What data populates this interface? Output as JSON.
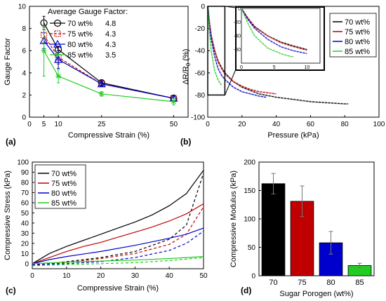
{
  "colors": {
    "70": "#000000",
    "75": "#c00000",
    "80": "#0000cc",
    "85": "#22cc22"
  },
  "chart_data": [
    {
      "panel_label": "(a)",
      "type": "line",
      "xlabel": "Compressive Strain (%)",
      "ylabel": "Gauge Factor",
      "xlim": [
        0,
        55
      ],
      "ylim": [
        0,
        10
      ],
      "xticks": [
        "0",
        "5",
        "10",
        "25",
        "50"
      ],
      "yticks": [
        "0",
        "2",
        "4",
        "6",
        "8",
        "10"
      ],
      "x": [
        5,
        10,
        25,
        50
      ],
      "legend_title": "Average Gauge Factor:",
      "series": [
        {
          "name": "70 wt%",
          "avg": "4.8",
          "marker": "circle",
          "values": [
            8.5,
            6.1,
            3.1,
            1.7
          ],
          "err": [
            0.6,
            0.3,
            0.2,
            0.2
          ]
        },
        {
          "name": "75 wt%",
          "avg": "4.3",
          "marker": "square",
          "values": [
            7.4,
            5.4,
            3.0,
            1.7
          ],
          "err": [
            0.7,
            0.6,
            0.2,
            0.2
          ]
        },
        {
          "name": "80 wt%",
          "avg": "4.3",
          "marker": "triangle",
          "values": [
            6.9,
            5.2,
            3.0,
            1.7
          ],
          "err": [
            0.7,
            0.8,
            0.2,
            0.2
          ]
        },
        {
          "name": "85 wt%",
          "avg": "3.5",
          "marker": "star",
          "values": [
            6.0,
            3.7,
            2.1,
            1.4
          ],
          "err": [
            2.3,
            0.6,
            0.2,
            0.3
          ]
        }
      ]
    },
    {
      "panel_label": "(b)",
      "type": "line",
      "xlabel": "Pressure (kPa)",
      "ylabel": "ΔR/R",
      "ylabel_sub": "0",
      "ylabel_unit": " (%)",
      "xlim": [
        0,
        100
      ],
      "ylim": [
        -100,
        0
      ],
      "xticks": [
        "0",
        "20",
        "40",
        "60",
        "80",
        "100"
      ],
      "yticks": [
        "0",
        "-20",
        "-40",
        "-60",
        "-80",
        "-100"
      ],
      "series": [
        {
          "name": "70 wt%",
          "x": [
            0,
            1,
            2,
            4,
            6,
            8,
            10,
            15,
            20,
            25,
            30,
            40,
            50,
            60,
            70,
            80,
            82
          ],
          "values": [
            0,
            -16,
            -27,
            -40,
            -49,
            -55,
            -60,
            -68,
            -73,
            -76,
            -79,
            -82,
            -84,
            -86,
            -87,
            -88,
            -88
          ]
        },
        {
          "name": "75 wt%",
          "x": [
            0,
            1,
            2,
            4,
            6,
            8,
            10,
            15,
            20,
            25,
            30,
            35,
            40
          ],
          "values": [
            0,
            -14,
            -26,
            -40,
            -50,
            -56,
            -61,
            -68,
            -72,
            -75,
            -77,
            -78,
            -79
          ]
        },
        {
          "name": "80 wt%",
          "x": [
            0,
            1,
            2,
            4,
            6,
            8,
            10,
            15,
            20,
            25,
            30,
            34
          ],
          "values": [
            0,
            -16,
            -29,
            -45,
            -56,
            -62,
            -66,
            -73,
            -77,
            -79,
            -81,
            -82
          ]
        },
        {
          "name": "85 wt%",
          "x": [
            0,
            1,
            2,
            4,
            6,
            7,
            8
          ],
          "values": [
            0,
            -22,
            -40,
            -58,
            -66,
            -69,
            -71
          ]
        }
      ],
      "inset": {
        "xlim": [
          0,
          12
        ],
        "ylim": [
          -80,
          0
        ],
        "xticks": [
          "0",
          "5",
          "10"
        ],
        "yticks": [
          "0",
          "-20",
          "-40",
          "-60"
        ],
        "zoom_box": {
          "x": [
            0,
            10
          ],
          "y": [
            -80,
            0
          ]
        }
      }
    },
    {
      "panel_label": "(c)",
      "type": "line",
      "xlabel": "Compressive Strain (%)",
      "ylabel": "Compressive Stress (kPa)",
      "xlim": [
        0,
        50
      ],
      "ylim": [
        -5,
        100
      ],
      "xticks": [
        "0",
        "10",
        "20",
        "30",
        "40",
        "50"
      ],
      "yticks": [
        "0",
        "10",
        "20",
        "30",
        "40",
        "50",
        "60",
        "70",
        "80",
        "90",
        "100"
      ],
      "series": [
        {
          "name": "70 wt%",
          "loading": [
            [
              0,
              0
            ],
            [
              5,
              10
            ],
            [
              10,
              17
            ],
            [
              15,
              23
            ],
            [
              20,
              29
            ],
            [
              25,
              35
            ],
            [
              30,
              41
            ],
            [
              35,
              48
            ],
            [
              40,
              57
            ],
            [
              45,
              69
            ],
            [
              50,
              92
            ]
          ],
          "unloading": [
            [
              0,
              -2
            ],
            [
              10,
              2
            ],
            [
              20,
              6
            ],
            [
              30,
              12
            ],
            [
              40,
              24
            ],
            [
              45,
              38
            ],
            [
              50,
              89
            ]
          ]
        },
        {
          "name": "75 wt%",
          "loading": [
            [
              0,
              0
            ],
            [
              5,
              6
            ],
            [
              10,
              12
            ],
            [
              15,
              17
            ],
            [
              20,
              21
            ],
            [
              25,
              26
            ],
            [
              30,
              31
            ],
            [
              35,
              36
            ],
            [
              40,
              42
            ],
            [
              45,
              49
            ],
            [
              50,
              59
            ]
          ],
          "unloading": [
            [
              0,
              -1
            ],
            [
              10,
              1
            ],
            [
              20,
              5
            ],
            [
              30,
              10
            ],
            [
              40,
              19
            ],
            [
              45,
              29
            ],
            [
              50,
              56
            ]
          ]
        },
        {
          "name": "80 wt%",
          "loading": [
            [
              0,
              0
            ],
            [
              5,
              4
            ],
            [
              10,
              7
            ],
            [
              20,
              12
            ],
            [
              30,
              18
            ],
            [
              40,
              25
            ],
            [
              45,
              29
            ],
            [
              50,
              35
            ]
          ],
          "unloading": [
            [
              0,
              -1
            ],
            [
              10,
              0
            ],
            [
              20,
              2
            ],
            [
              30,
              6
            ],
            [
              40,
              13
            ],
            [
              45,
              20
            ],
            [
              50,
              32
            ]
          ]
        },
        {
          "name": "85 wt%",
          "loading": [
            [
              0,
              0
            ],
            [
              10,
              1.5
            ],
            [
              20,
              2.5
            ],
            [
              30,
              3.5
            ],
            [
              40,
              5
            ],
            [
              50,
              7
            ]
          ],
          "unloading": [
            [
              0,
              -2
            ],
            [
              10,
              -1
            ],
            [
              20,
              0
            ],
            [
              30,
              1
            ],
            [
              40,
              3
            ],
            [
              50,
              6
            ]
          ]
        }
      ]
    },
    {
      "panel_label": "(d)",
      "type": "bar",
      "xlabel": "Sugar Porogen (wt%)",
      "ylabel": "Compressive Modulus (kPa)",
      "ylim": [
        0,
        200
      ],
      "yticks": [
        "0",
        "50",
        "100",
        "150",
        "200"
      ],
      "categories": [
        "70",
        "75",
        "80",
        "85"
      ],
      "values": [
        162,
        131,
        58,
        18
      ],
      "errors": [
        18,
        27,
        20,
        4
      ]
    }
  ]
}
